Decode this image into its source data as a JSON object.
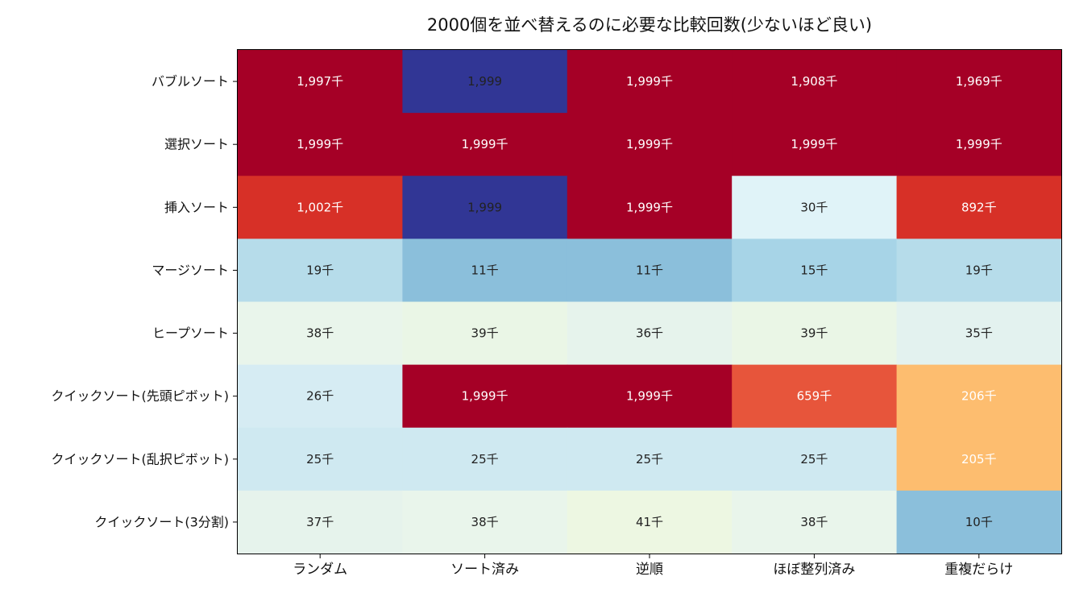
{
  "chart_data": {
    "type": "heatmap",
    "title": "2000個を並べ替えるのに必要な比較回数(少ないほど良い)",
    "xlabel": "",
    "ylabel": "",
    "columns": [
      "ランダム",
      "ソート済み",
      "逆順",
      "ほぼ整列済み",
      "重複だらけ"
    ],
    "rows": [
      "バブルソート",
      "選択ソート",
      "挿入ソート",
      "マージソート",
      "ヒープソート",
      "クイックソート(先頭ピボット)",
      "クイックソート(乱択ピボット)",
      "クイックソート(3分割)"
    ],
    "values": [
      [
        1997000,
        1999,
        1999000,
        1908000,
        1969000
      ],
      [
        1999000,
        1999000,
        1999000,
        1999000,
        1999000
      ],
      [
        1002000,
        1999,
        1999000,
        30000,
        892000
      ],
      [
        19000,
        11000,
        11000,
        15000,
        19000
      ],
      [
        38000,
        39000,
        36000,
        39000,
        35000
      ],
      [
        26000,
        1999000,
        1999000,
        659000,
        206000
      ],
      [
        25000,
        25000,
        25000,
        25000,
        205000
      ],
      [
        37000,
        38000,
        41000,
        38000,
        10000
      ]
    ],
    "labels": [
      [
        "1,997千",
        "1,999",
        "1,999千",
        "1,908千",
        "1,969千"
      ],
      [
        "1,999千",
        "1,999千",
        "1,999千",
        "1,999千",
        "1,999千"
      ],
      [
        "1,002千",
        "1,999",
        "1,999千",
        "30千",
        "892千"
      ],
      [
        "19千",
        "11千",
        "11千",
        "15千",
        "19千"
      ],
      [
        "38千",
        "39千",
        "36千",
        "39千",
        "35千"
      ],
      [
        "26千",
        "1,999千",
        "1,999千",
        "659千",
        "206千"
      ],
      [
        "25千",
        "25千",
        "25千",
        "25千",
        "205千"
      ],
      [
        "37千",
        "38千",
        "41千",
        "38千",
        "10千"
      ]
    ],
    "colors": [
      [
        "#a50026",
        "#313695",
        "#a50026",
        "#a50026",
        "#a50026"
      ],
      [
        "#a50026",
        "#a50026",
        "#a50026",
        "#a50026",
        "#a50026"
      ],
      [
        "#d73027",
        "#313695",
        "#a50026",
        "#e0f3f8",
        "#d73027"
      ],
      [
        "#b6dcea",
        "#8bbfdb",
        "#8bbfdb",
        "#a7d4e7",
        "#b6dcea"
      ],
      [
        "#e9f5eb",
        "#eaf6e6",
        "#e6f3ec",
        "#eaf6e6",
        "#e3f2ef"
      ],
      [
        "#d6ecf3",
        "#a50026",
        "#a50026",
        "#e7553b",
        "#fdbd6f"
      ],
      [
        "#cfe9f1",
        "#cfe9f1",
        "#cfe9f1",
        "#cfe9f1",
        "#fdbd6f"
      ],
      [
        "#e6f3ec",
        "#e9f5eb",
        "#edf7e2",
        "#e9f5eb",
        "#8bbfdb"
      ]
    ],
    "text_colors": [
      [
        "#ffffff",
        "#222222",
        "#ffffff",
        "#ffffff",
        "#ffffff"
      ],
      [
        "#ffffff",
        "#ffffff",
        "#ffffff",
        "#ffffff",
        "#ffffff"
      ],
      [
        "#ffffff",
        "#222222",
        "#ffffff",
        "#222222",
        "#ffffff"
      ],
      [
        "#222222",
        "#222222",
        "#222222",
        "#222222",
        "#222222"
      ],
      [
        "#222222",
        "#222222",
        "#222222",
        "#222222",
        "#222222"
      ],
      [
        "#222222",
        "#ffffff",
        "#ffffff",
        "#ffffff",
        "#ffffff"
      ],
      [
        "#222222",
        "#222222",
        "#222222",
        "#222222",
        "#ffffff"
      ],
      [
        "#222222",
        "#222222",
        "#222222",
        "#222222",
        "#222222"
      ]
    ],
    "colormap": "RdYlBu_r",
    "grid": false,
    "legend": "none"
  }
}
